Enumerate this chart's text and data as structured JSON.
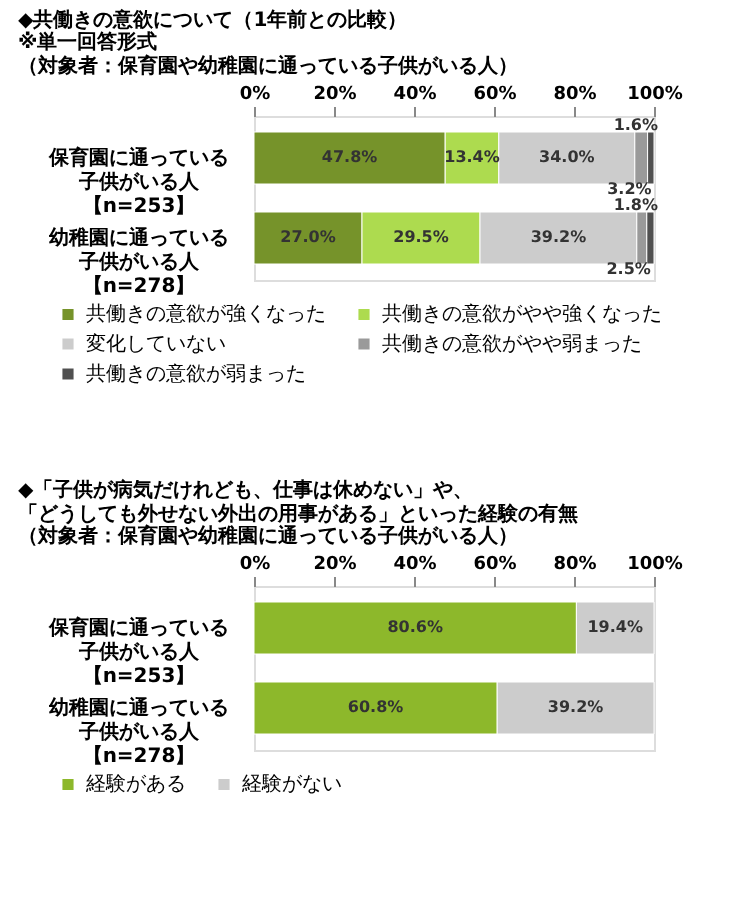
{
  "chart_data": [
    {
      "type": "bar",
      "orientation": "horizontal",
      "stacked": true,
      "title": "◆共働きの意欲について（1年前との比較）",
      "subtitle": "※単一回答形式（対象者：保育園や幼稚園に通っている子供がいる人）",
      "categories": [
        "保育園に通っている子供がいる人【n=253】",
        "幼稚園に通っている子供がいる人【n=278】"
      ],
      "series": [
        {
          "name": "共働きの意欲が強くなった",
          "color": "#76932a",
          "values": [
            47.8,
            27.0
          ],
          "value_labels": [
            "47.8%",
            "27.0%"
          ]
        },
        {
          "name": "共働きの意欲がやや強くなった",
          "color": "#addb4f",
          "values": [
            13.4,
            29.5
          ],
          "value_labels": [
            "13.4%",
            "29.5%"
          ]
        },
        {
          "name": "変化していない",
          "color": "#cccccc",
          "values": [
            34.0,
            39.2
          ],
          "value_labels": [
            "34.0%",
            "39.2%"
          ]
        },
        {
          "name": "共働きの意欲がやや弱まった",
          "color": "#9a9a9a",
          "values": [
            3.2,
            2.5
          ],
          "value_labels": [
            "3.2%",
            "2.5%"
          ]
        },
        {
          "name": "共働きの意欲が弱まった",
          "color": "#505050",
          "values": [
            1.6,
            1.8
          ],
          "value_labels": [
            "1.6%",
            "1.8%"
          ]
        }
      ],
      "xlim": [
        0,
        100
      ],
      "xticks": [
        {
          "value": 0,
          "label": "0%"
        },
        {
          "value": 20,
          "label": "20%"
        },
        {
          "value": 40,
          "label": "40%"
        },
        {
          "value": 60,
          "label": "60%"
        },
        {
          "value": 80,
          "label": "80%"
        },
        {
          "value": 100,
          "label": "100%"
        }
      ],
      "legend": "bottom"
    },
    {
      "type": "bar",
      "orientation": "horizontal",
      "stacked": true,
      "title": "◆「子供が病気だけれども、仕事は休めない」や、「どうしても外せない外出の用事がある」といった経験の有無",
      "subtitle": "（対象者：保育園や幼稚園に通っている子供がいる人）",
      "categories": [
        "保育園に通っている子供がいる人【n=253】",
        "幼稚園に通っている子供がいる人【n=278】"
      ],
      "series": [
        {
          "name": "経験がある",
          "color": "#8db82b",
          "values": [
            80.6,
            60.8
          ],
          "value_labels": [
            "80.6%",
            "60.8%"
          ]
        },
        {
          "name": "経験がない",
          "color": "#cccccc",
          "values": [
            19.4,
            39.2
          ],
          "value_labels": [
            "19.4%",
            "39.2%"
          ]
        }
      ],
      "xlim": [
        0,
        100
      ],
      "xticks": [
        {
          "value": 0,
          "label": "0%"
        },
        {
          "value": 20,
          "label": "20%"
        },
        {
          "value": 40,
          "label": "40%"
        },
        {
          "value": 60,
          "label": "60%"
        },
        {
          "value": 80,
          "label": "80%"
        },
        {
          "value": 100,
          "label": "100%"
        }
      ],
      "legend": "bottom"
    }
  ]
}
